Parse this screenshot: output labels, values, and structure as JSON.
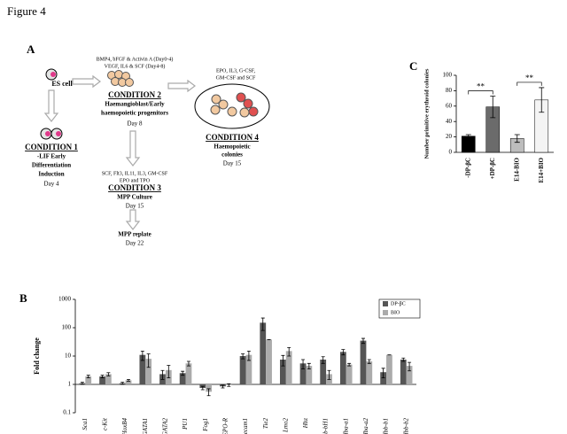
{
  "figure_title": "Figure 4",
  "diagram": {
    "panel_label": "A",
    "es_cell": "ES cell",
    "condition1": {
      "title": "CONDITION 1",
      "lines": [
        "-LIF Early",
        "Differentiation",
        "Induction"
      ],
      "day": "Day 4"
    },
    "condition2": {
      "factors": [
        "BMP4, bFGF & Activin A (Day0-4)",
        "VEGF, IL6 & SCF (Day4-8)"
      ],
      "title": "CONDITION 2",
      "lines": [
        "Haemangioblast/Early",
        "haemopoietic progenitors"
      ],
      "day": "Day 8"
    },
    "condition3": {
      "factors": [
        "SCF, Flt3, IL11, IL3, GM-CSF",
        "EPO and TPO"
      ],
      "title": "CONDITION 3",
      "lines": [
        "MPP Culture"
      ],
      "day": "Day 15",
      "replate": "MPP replate",
      "replate_day": "Day  22"
    },
    "condition4": {
      "factors": [
        "EPO, IL3, G-CSF,",
        "GM-CSF and SCF"
      ],
      "title": "CONDITION 4",
      "lines": [
        "Haemopoietic",
        "colonies"
      ],
      "day": "Day 15"
    }
  },
  "chart_data": [
    {
      "type": "bar",
      "panel_label": "C",
      "y_label": "Number primitive erythroid colonies",
      "categories": [
        "-DP-βC",
        "+DP-βC",
        "E14-BIO",
        "E14+BIO"
      ],
      "values": [
        21,
        59,
        18,
        68
      ],
      "errors": [
        2,
        14,
        5,
        16
      ],
      "colors": [
        "#000000",
        "#6b6b6b",
        "#bdbdbd",
        "#f4f4f4"
      ],
      "annotations": [
        "**",
        "**"
      ],
      "ylim": [
        0,
        100
      ],
      "yticks": [
        0,
        20,
        40,
        60,
        80,
        100
      ]
    },
    {
      "type": "grouped-bar",
      "panel_label": "B",
      "y_label": "Fold change",
      "log_scale": true,
      "legend": "top-right",
      "categories": [
        "Sca1",
        "c-Kit",
        "HoxB4",
        "GATA1",
        "GATA2",
        "PU1",
        "Fog1",
        "EPO-R",
        "Pecam1",
        "Tie2",
        "Lmo2",
        "Hbz",
        "Hbb-bH1",
        "Hba-a1",
        "Hba-a2",
        "Hbb-b1",
        "Hbb-b2"
      ],
      "series": [
        {
          "name": "DP-βC",
          "color": "#555555",
          "values": [
            1.1,
            1.9,
            1.1,
            11,
            2.3,
            2.5,
            0.75,
            0.85,
            10,
            150,
            7.5,
            5.5,
            7.5,
            14,
            35,
            2.7,
            7.5
          ],
          "errors": [
            0.1,
            0.2,
            0.1,
            4,
            0.8,
            0.4,
            0.1,
            0.1,
            2,
            70,
            3,
            2,
            2,
            3,
            7,
            1,
            1
          ]
        },
        {
          "name": "BIO",
          "color": "#ababab",
          "values": [
            1.9,
            2.3,
            1.4,
            8,
            3.2,
            5.5,
            0.55,
            0.95,
            11,
            38,
            15,
            4.5,
            2.3,
            5,
            6.5,
            11,
            4.5
          ],
          "errors": [
            0.2,
            0.3,
            0.1,
            4,
            1.5,
            1,
            0.15,
            0.1,
            4,
            0,
            5,
            1,
            0.8,
            0.5,
            1,
            0,
            1.5
          ]
        }
      ],
      "ylim": [
        0.1,
        1000
      ],
      "yticks": [
        0.1,
        1,
        10,
        100,
        1000
      ]
    }
  ]
}
